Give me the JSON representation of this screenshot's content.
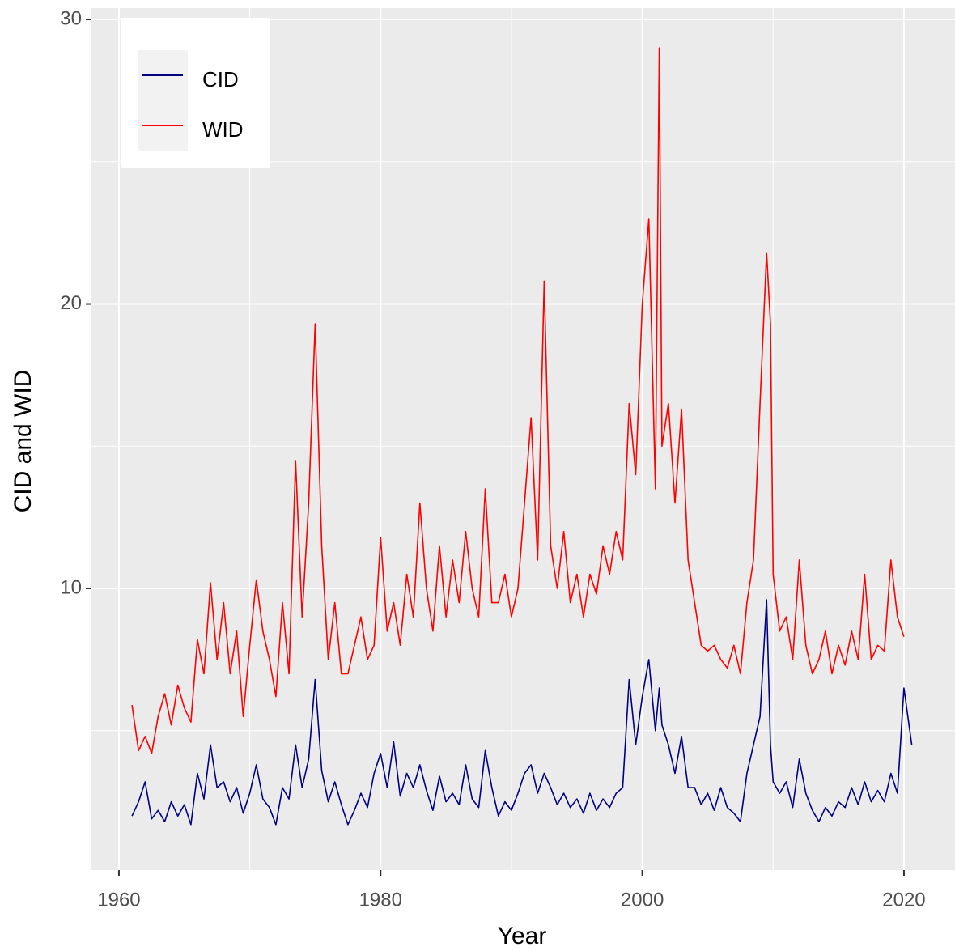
{
  "chart_data": {
    "type": "line",
    "xlabel": "Year",
    "ylabel": "CID and WID",
    "x": [
      1961,
      1961.5,
      1962,
      1962.5,
      1963,
      1963.5,
      1964,
      1964.5,
      1965,
      1965.5,
      1966,
      1966.5,
      1967,
      1967.5,
      1968,
      1968.5,
      1969,
      1969.5,
      1970,
      1970.5,
      1971,
      1971.5,
      1972,
      1972.5,
      1973,
      1973.5,
      1974,
      1974.5,
      1975,
      1975.5,
      1976,
      1976.5,
      1977,
      1977.5,
      1978,
      1978.5,
      1979,
      1979.5,
      1980,
      1980.5,
      1981,
      1981.5,
      1982,
      1982.5,
      1983,
      1983.5,
      1984,
      1984.5,
      1985,
      1985.5,
      1986,
      1986.5,
      1987,
      1987.5,
      1988,
      1988.5,
      1989,
      1989.5,
      1990,
      1990.5,
      1991,
      1991.5,
      1992,
      1992.5,
      1993,
      1993.5,
      1994,
      1994.5,
      1995,
      1995.5,
      1996,
      1996.5,
      1997,
      1997.5,
      1998,
      1998.5,
      1999,
      1999.5,
      2000,
      2000.5,
      2001,
      2001.3,
      2001.5,
      2002,
      2002.5,
      2003,
      2003.5,
      2004,
      2004.5,
      2005,
      2005.5,
      2006,
      2006.5,
      2007,
      2007.5,
      2008,
      2008.5,
      2009,
      2009.5,
      2009.8,
      2010,
      2010.5,
      2011,
      2011.5,
      2012,
      2012.5,
      2013,
      2013.5,
      2014,
      2014.5,
      2015,
      2015.5,
      2016,
      2016.5,
      2017,
      2017.5,
      2018,
      2018.5,
      2019,
      2019.5,
      2020,
      2020.6
    ],
    "series": [
      {
        "name": "CID",
        "color": "#000080",
        "values": [
          2.0,
          2.5,
          3.2,
          1.9,
          2.2,
          1.8,
          2.5,
          2.0,
          2.4,
          1.7,
          3.5,
          2.6,
          4.5,
          3.0,
          3.2,
          2.5,
          3.0,
          2.1,
          2.8,
          3.8,
          2.6,
          2.3,
          1.7,
          3.0,
          2.6,
          4.5,
          3.0,
          4.0,
          6.8,
          3.6,
          2.5,
          3.2,
          2.4,
          1.7,
          2.2,
          2.8,
          2.3,
          3.5,
          4.2,
          3.0,
          4.6,
          2.7,
          3.5,
          3.0,
          3.8,
          2.9,
          2.2,
          3.4,
          2.5,
          2.8,
          2.4,
          3.8,
          2.6,
          2.3,
          4.3,
          3.0,
          2.0,
          2.5,
          2.2,
          2.8,
          3.5,
          3.8,
          2.8,
          3.5,
          3.0,
          2.4,
          2.8,
          2.3,
          2.6,
          2.1,
          2.8,
          2.2,
          2.6,
          2.3,
          2.8,
          3.0,
          6.8,
          4.5,
          6.2,
          7.5,
          5.0,
          6.5,
          5.2,
          4.5,
          3.5,
          4.8,
          3.0,
          3.0,
          2.4,
          2.8,
          2.2,
          3.0,
          2.3,
          2.1,
          1.8,
          3.5,
          4.5,
          5.5,
          9.6,
          4.5,
          3.2,
          2.8,
          3.2,
          2.3,
          4.0,
          2.8,
          2.2,
          1.8,
          2.3,
          2.0,
          2.5,
          2.3,
          3.0,
          2.4,
          3.2,
          2.5,
          2.9,
          2.5,
          3.5,
          2.8,
          6.5,
          4.5
        ]
      },
      {
        "name": "WID",
        "color": "#ff0000",
        "values": [
          5.9,
          4.3,
          4.8,
          4.2,
          5.5,
          6.3,
          5.2,
          6.6,
          5.8,
          5.3,
          8.2,
          7.0,
          10.2,
          7.5,
          9.5,
          7.0,
          8.5,
          5.5,
          8.0,
          10.3,
          8.5,
          7.5,
          6.2,
          9.5,
          7.0,
          14.5,
          9.0,
          13.0,
          19.3,
          11.5,
          7.5,
          9.5,
          7.0,
          7.0,
          8.0,
          9.0,
          7.5,
          8.0,
          11.8,
          8.5,
          9.5,
          8.0,
          10.5,
          9.0,
          13.0,
          10.0,
          8.5,
          11.5,
          9.0,
          11.0,
          9.5,
          12.0,
          10.0,
          9.0,
          13.5,
          9.5,
          9.5,
          10.5,
          9.0,
          10.0,
          13.0,
          16.0,
          11.0,
          20.8,
          11.5,
          10.0,
          12.0,
          9.5,
          10.5,
          9.0,
          10.5,
          9.8,
          11.5,
          10.5,
          12.0,
          11.0,
          16.5,
          14.0,
          20.0,
          23.0,
          13.5,
          29.0,
          15.0,
          16.5,
          13.0,
          16.3,
          11.0,
          9.5,
          8.0,
          7.8,
          8.0,
          7.5,
          7.2,
          8.0,
          7.0,
          9.5,
          11.0,
          16.5,
          21.8,
          19.3,
          10.5,
          8.5,
          9.0,
          7.5,
          11.0,
          8.0,
          7.0,
          7.5,
          8.5,
          7.0,
          8.0,
          7.3,
          8.5,
          7.5,
          10.5,
          7.5,
          8.0,
          7.8,
          11.0,
          9.0,
          8.3,
          null
        ]
      }
    ],
    "xlim": [
      1957.9,
      2023.9
    ],
    "xticks": [
      1960,
      1980,
      2000,
      2020
    ],
    "ylim": [
      0.1,
      30.4
    ],
    "yticks": [
      10,
      20,
      30
    ],
    "x_minor_grid": [
      1970,
      1990,
      2010
    ],
    "y_minor_grid": [
      5,
      15,
      25
    ],
    "grid": true,
    "legend": "top-left"
  }
}
